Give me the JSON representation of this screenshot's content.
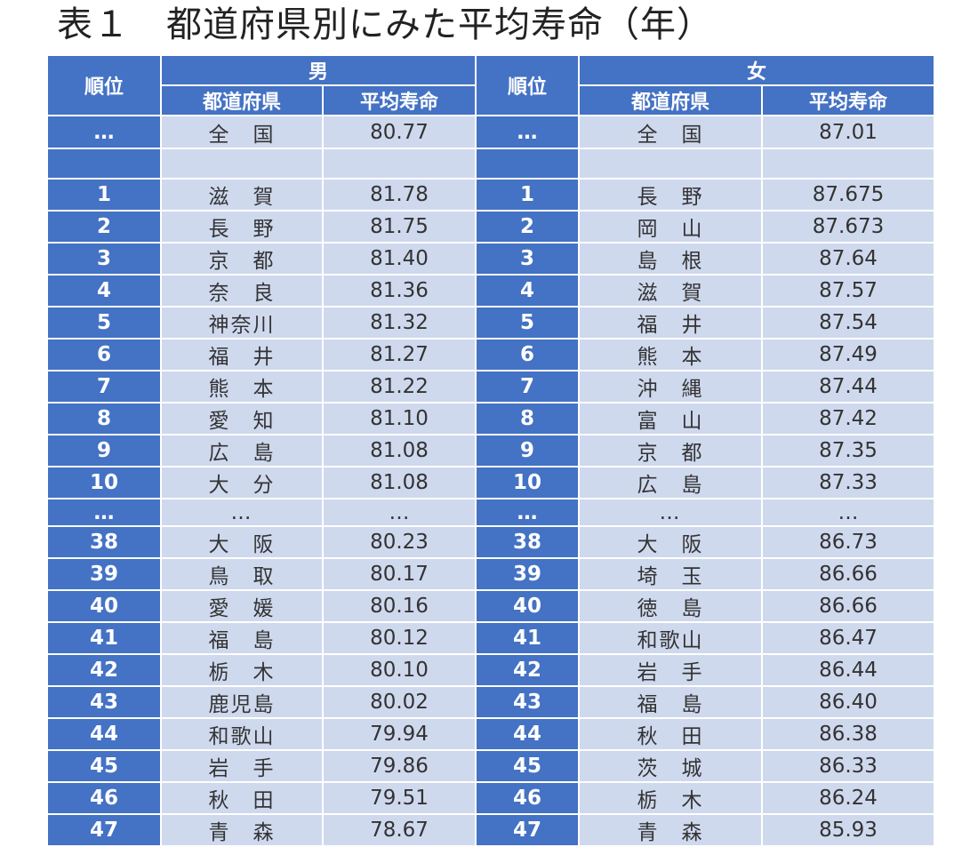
{
  "title": "表１　都道府県別にみた平均寿命（年）",
  "headers": {
    "rank": "順位",
    "male": "男",
    "female": "女",
    "prefecture": "都道府県",
    "life_expectancy": "平均寿命"
  },
  "rows": [
    {
      "m_rank": "…",
      "m_pref": "全　国",
      "m_val": "80.77",
      "f_rank": "…",
      "f_pref": "全　国",
      "f_val": "87.01"
    },
    {
      "m_rank": "",
      "m_pref": "",
      "m_val": "",
      "f_rank": "",
      "f_pref": "",
      "f_val": ""
    },
    {
      "m_rank": "1",
      "m_pref": "滋　賀",
      "m_val": "81.78",
      "f_rank": "1",
      "f_pref": "長　野",
      "f_val": "87.675"
    },
    {
      "m_rank": "2",
      "m_pref": "長　野",
      "m_val": "81.75",
      "f_rank": "2",
      "f_pref": "岡　山",
      "f_val": "87.673"
    },
    {
      "m_rank": "3",
      "m_pref": "京　都",
      "m_val": "81.40",
      "f_rank": "3",
      "f_pref": "島　根",
      "f_val": "87.64"
    },
    {
      "m_rank": "4",
      "m_pref": "奈　良",
      "m_val": "81.36",
      "f_rank": "4",
      "f_pref": "滋　賀",
      "f_val": "87.57"
    },
    {
      "m_rank": "5",
      "m_pref": "神奈川",
      "m_val": "81.32",
      "f_rank": "5",
      "f_pref": "福　井",
      "f_val": "87.54"
    },
    {
      "m_rank": "6",
      "m_pref": "福　井",
      "m_val": "81.27",
      "f_rank": "6",
      "f_pref": "熊　本",
      "f_val": "87.49"
    },
    {
      "m_rank": "7",
      "m_pref": "熊　本",
      "m_val": "81.22",
      "f_rank": "7",
      "f_pref": "沖　縄",
      "f_val": "87.44"
    },
    {
      "m_rank": "8",
      "m_pref": "愛　知",
      "m_val": "81.10",
      "f_rank": "8",
      "f_pref": "富　山",
      "f_val": "87.42"
    },
    {
      "m_rank": "9",
      "m_pref": "広　島",
      "m_val": "81.08",
      "f_rank": "9",
      "f_pref": "京　都",
      "f_val": "87.35"
    },
    {
      "m_rank": "10",
      "m_pref": "大　分",
      "m_val": "81.08",
      "f_rank": "10",
      "f_pref": "広　島",
      "f_val": "87.33"
    },
    {
      "m_rank": "…",
      "m_pref": "…",
      "m_val": "…",
      "f_rank": "…",
      "f_pref": "…",
      "f_val": "…"
    },
    {
      "m_rank": "38",
      "m_pref": "大　阪",
      "m_val": "80.23",
      "f_rank": "38",
      "f_pref": "大　阪",
      "f_val": "86.73"
    },
    {
      "m_rank": "39",
      "m_pref": "鳥　取",
      "m_val": "80.17",
      "f_rank": "39",
      "f_pref": "埼　玉",
      "f_val": "86.66"
    },
    {
      "m_rank": "40",
      "m_pref": "愛　媛",
      "m_val": "80.16",
      "f_rank": "40",
      "f_pref": "徳　島",
      "f_val": "86.66"
    },
    {
      "m_rank": "41",
      "m_pref": "福　島",
      "m_val": "80.12",
      "f_rank": "41",
      "f_pref": "和歌山",
      "f_val": "86.47"
    },
    {
      "m_rank": "42",
      "m_pref": "栃　木",
      "m_val": "80.10",
      "f_rank": "42",
      "f_pref": "岩　手",
      "f_val": "86.44"
    },
    {
      "m_rank": "43",
      "m_pref": "鹿児島",
      "m_val": "80.02",
      "f_rank": "43",
      "f_pref": "福　島",
      "f_val": "86.40"
    },
    {
      "m_rank": "44",
      "m_pref": "和歌山",
      "m_val": "79.94",
      "f_rank": "44",
      "f_pref": "秋　田",
      "f_val": "86.38"
    },
    {
      "m_rank": "45",
      "m_pref": "岩　手",
      "m_val": "79.86",
      "f_rank": "45",
      "f_pref": "茨　城",
      "f_val": "86.33"
    },
    {
      "m_rank": "46",
      "m_pref": "秋　田",
      "m_val": "79.51",
      "f_rank": "46",
      "f_pref": "栃　木",
      "f_val": "86.24"
    },
    {
      "m_rank": "47",
      "m_pref": "青　森",
      "m_val": "78.67",
      "f_rank": "47",
      "f_pref": "青　森",
      "f_val": "85.93"
    }
  ],
  "colors": {
    "header_blue": "#4472c4",
    "cell_light_blue": "#cfd9ee",
    "text_dark": "#333333",
    "text_white": "#ffffff"
  }
}
